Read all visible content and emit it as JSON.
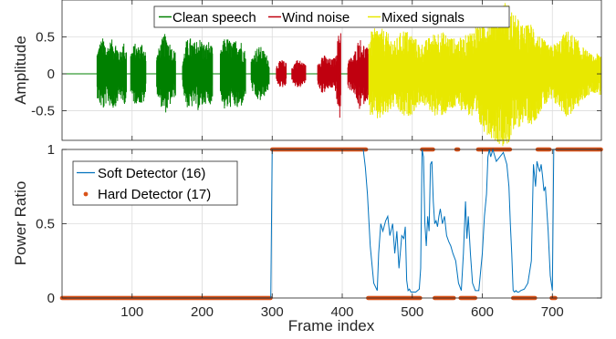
{
  "chart_data": [
    {
      "type": "line",
      "ylabel": "Amplitude",
      "xlabel": "",
      "xlim": [
        0,
        770
      ],
      "ylim": [
        -0.9,
        1.0
      ],
      "yticks": [
        -0.5,
        0,
        0.5
      ],
      "ytick_labels": [
        "-0.5",
        "0",
        "0.5"
      ],
      "xticks": [
        100,
        200,
        300,
        400,
        500,
        600,
        700
      ],
      "show_xtick_labels": false,
      "grid": true,
      "legend_position": "top-center",
      "legend_orientation": "horizontal",
      "series": [
        {
          "name": "Clean speech",
          "color": "#008000",
          "style": "dense-signal",
          "segments": [
            {
              "x_range": [
                50,
                92
              ],
              "envelope": [
                0.32,
                0.45,
                0.5,
                0.38,
                0.45,
                0.48,
                0.42,
                0.3,
                0.45,
                0.35
              ]
            },
            {
              "x_range": [
                98,
                120
              ],
              "envelope": [
                0.3,
                0.42,
                0.38,
                0.45,
                0.3
              ]
            },
            {
              "x_range": [
                135,
                162
              ],
              "envelope": [
                0.25,
                0.42,
                0.55,
                0.5,
                0.38,
                0.3
              ]
            },
            {
              "x_range": [
                172,
                215
              ],
              "envelope": [
                0.2,
                0.45,
                0.5,
                0.42,
                0.5,
                0.48,
                0.4,
                0.45,
                0.35
              ]
            },
            {
              "x_range": [
                226,
                262
              ],
              "envelope": [
                0.3,
                0.5,
                0.48,
                0.42,
                0.5,
                0.45,
                0.3
              ]
            },
            {
              "x_range": [
                270,
                296
              ],
              "envelope": [
                0.2,
                0.35,
                0.38,
                0.3,
                0.2
              ]
            }
          ]
        },
        {
          "name": "Wind noise",
          "color": "#c0000f",
          "style": "dense-signal",
          "segments": [
            {
              "x_range": [
                306,
                320
              ],
              "envelope": [
                0.12,
                0.2,
                0.15
              ]
            },
            {
              "x_range": [
                328,
                348
              ],
              "envelope": [
                0.1,
                0.2,
                0.18,
                0.12
              ]
            },
            {
              "x_range": [
                365,
                392
              ],
              "envelope": [
                0.15,
                0.28,
                0.22,
                0.2,
                0.25
              ]
            },
            {
              "x_range": [
                392,
                398
              ],
              "envelope": [
                0.4,
                0.7
              ]
            },
            {
              "x_range": [
                408,
                440
              ],
              "envelope": [
                0.2,
                0.25,
                0.5,
                0.4,
                0.3
              ]
            }
          ]
        },
        {
          "name": "Mixed signals",
          "color": "#e8e800",
          "style": "dense-signal",
          "segments": [
            {
              "x_range": [
                438,
                770
              ],
              "envelope": [
                0.55,
                0.65,
                0.58,
                0.45,
                0.62,
                0.55,
                0.4,
                0.5,
                0.6,
                0.55,
                0.48,
                0.5,
                0.62,
                0.75,
                0.85,
                0.95,
                1.0,
                0.8,
                0.65,
                0.7,
                0.5,
                0.38,
                0.45,
                0.6,
                0.5,
                0.35,
                0.25,
                0.3
              ]
            }
          ]
        }
      ]
    },
    {
      "type": "line",
      "ylabel": "Power Ratio",
      "xlabel": "Frame index",
      "xlim": [
        0,
        770
      ],
      "ylim": [
        0,
        1
      ],
      "yticks": [
        0,
        0.5,
        1
      ],
      "ytick_labels": [
        "0",
        "0.5",
        "1"
      ],
      "xticks": [
        100,
        200,
        300,
        400,
        500,
        600,
        700
      ],
      "xtick_labels": [
        "100",
        "200",
        "300",
        "400",
        "500",
        "600",
        "700"
      ],
      "grid": true,
      "legend_position": "top-left",
      "series": [
        {
          "name": "Soft Detector (16)",
          "color": "#0072bd",
          "marker": "none",
          "x": [
            0,
            298,
            300,
            301,
            310,
            320,
            340,
            360,
            380,
            400,
            420,
            430,
            433,
            436,
            440,
            445,
            450,
            452,
            455,
            458,
            462,
            465,
            468,
            472,
            475,
            478,
            481,
            485,
            488,
            490,
            492,
            494,
            496,
            498,
            500,
            505,
            510,
            512,
            514,
            516,
            518,
            520,
            522,
            524,
            526,
            528,
            530,
            532,
            534,
            536,
            538,
            540,
            543,
            546,
            549,
            552,
            555,
            558,
            562,
            566,
            570,
            573,
            576,
            578,
            580,
            583,
            586,
            590,
            595,
            600,
            603,
            606,
            608,
            610,
            612,
            615,
            620,
            625,
            630,
            635,
            638,
            640,
            642,
            644,
            646,
            648,
            650,
            652,
            655,
            660,
            665,
            670,
            673,
            676,
            678,
            680,
            682,
            684,
            686,
            688,
            690,
            692,
            694,
            697,
            700,
            702,
            704,
            706,
            708,
            710,
            715,
            720,
            740,
            770
          ],
          "y": [
            0,
            0,
            1,
            1,
            1,
            1,
            1,
            1,
            1,
            1,
            1,
            1,
            0.88,
            0.7,
            0.35,
            0.1,
            0.05,
            0.3,
            0.5,
            0.45,
            0.52,
            0.55,
            0.42,
            0.5,
            0.3,
            0.45,
            0.2,
            0.42,
            0.4,
            0.48,
            0.12,
            0.05,
            0.06,
            0.04,
            0.04,
            0.04,
            0.06,
            0.2,
            1,
            0.95,
            0.5,
            0.35,
            0.55,
            0.45,
            0.9,
            0.92,
            0.65,
            0.5,
            0.52,
            0.48,
            0.55,
            0.6,
            0.5,
            0.55,
            0.42,
            0.38,
            0.35,
            0.3,
            0.25,
            0.1,
            0.05,
            0.3,
            0.65,
            0.4,
            0.55,
            0.3,
            0.1,
            0.05,
            0.05,
            0.3,
            0.55,
            0.7,
            0.95,
            1,
            0.95,
            1,
            0.92,
            0.95,
            0.98,
            0.9,
            0.75,
            0.5,
            0.3,
            0.05,
            0.04,
            0.05,
            0.04,
            0.04,
            0.05,
            0.06,
            0.1,
            0.25,
            0.9,
            0.75,
            0.92,
            0.88,
            0.85,
            0.9,
            0.82,
            0.72,
            0.75,
            0.6,
            0.45,
            0.15,
            0.05,
            1,
            1,
            1,
            1,
            1,
            1,
            1,
            1,
            1
          ]
        },
        {
          "name": "Hard Detector (17)",
          "color": "#d95319",
          "marker": "dot",
          "points": [
            [
              0,
              0
            ],
            [
              298,
              0
            ],
            [
              300,
              1
            ],
            [
              435,
              1
            ],
            [
              437,
              0
            ],
            [
              512,
              0
            ],
            [
              514,
              1
            ],
            [
              530,
              1
            ],
            [
              532,
              0
            ],
            [
              560,
              0
            ],
            [
              563,
              1
            ],
            [
              566,
              1
            ],
            [
              569,
              0
            ],
            [
              590,
              0
            ],
            [
              594,
              1
            ],
            [
              640,
              1
            ],
            [
              644,
              0
            ],
            [
              676,
              0
            ],
            [
              679,
              1
            ],
            [
              696,
              1
            ],
            [
              699,
              0
            ],
            [
              705,
              0
            ],
            [
              707,
              1
            ],
            [
              770,
              1
            ]
          ]
        }
      ]
    }
  ]
}
